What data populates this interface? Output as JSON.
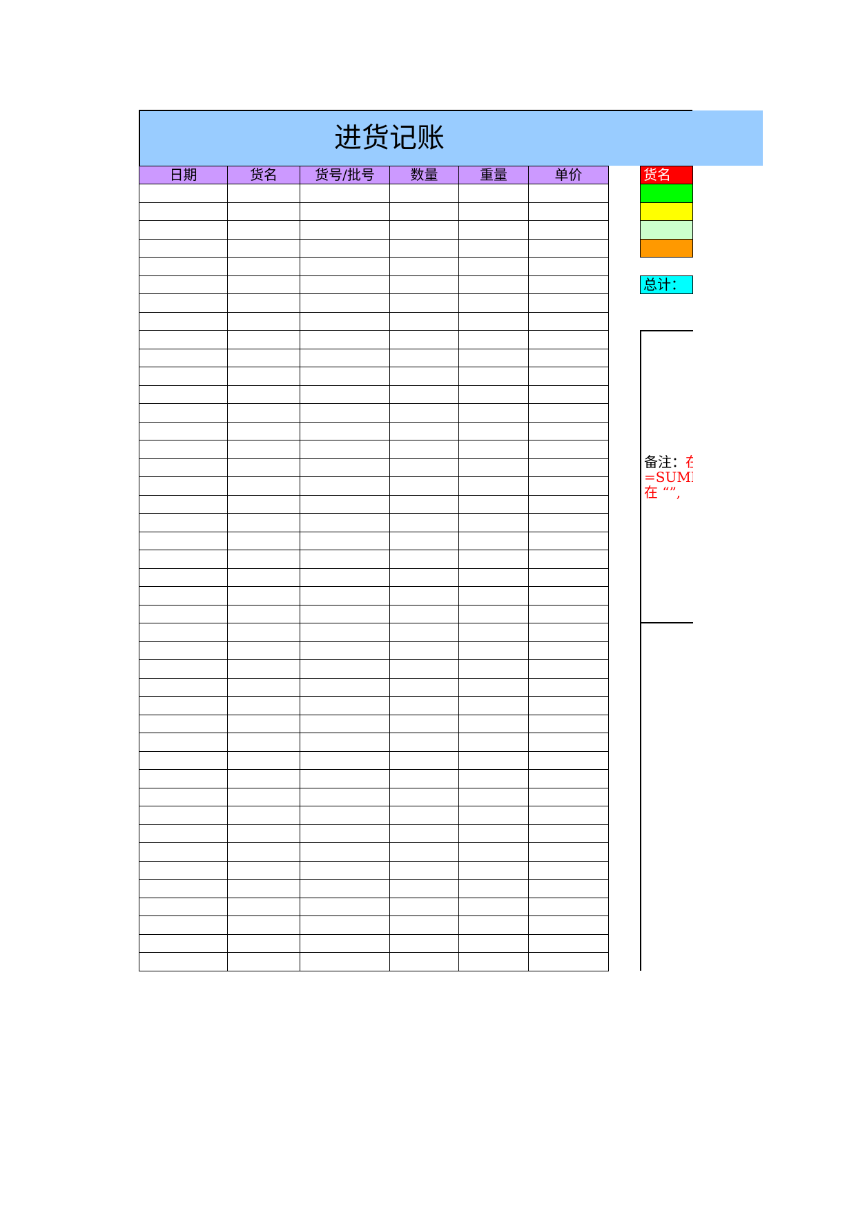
{
  "header": {
    "title": "进货记账"
  },
  "table": {
    "columns": [
      "日期",
      "货名",
      "货号/批号",
      "数量",
      "重量",
      "单价"
    ]
  },
  "legend": {
    "label": "货名",
    "total": "总计："
  },
  "notes": {
    "label": "备注：",
    "line1": "在",
    "line2": "=SUMIF(",
    "line3": "在 “”,"
  }
}
